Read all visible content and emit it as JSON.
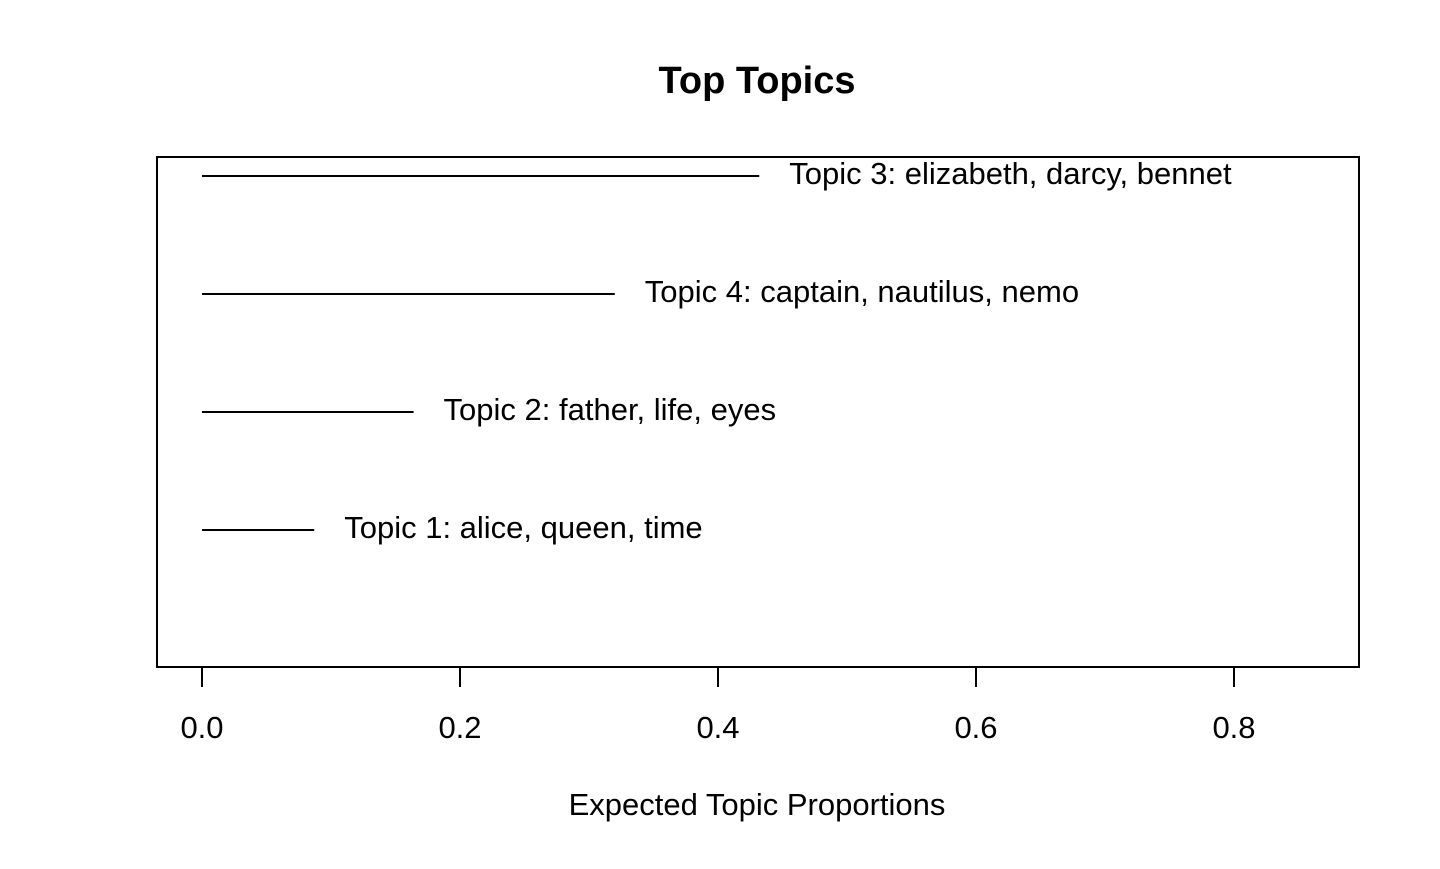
{
  "chart_data": {
    "type": "bar",
    "title": "Top Topics",
    "xlabel": "Expected Topic Proportions",
    "ylabel": "",
    "xlim": [
      0,
      0.9
    ],
    "xticks": [
      0.0,
      0.2,
      0.4,
      0.6,
      0.8
    ],
    "xtick_labels": [
      "0.0",
      "0.2",
      "0.4",
      "0.6",
      "0.8"
    ],
    "grid": false,
    "topics": [
      {
        "label": "Topic 3: elizabeth, darcy, bennet",
        "value": 0.432
      },
      {
        "label": "Topic 4: captain, nautilus, nemo",
        "value": 0.32
      },
      {
        "label": "Topic 2: father, life, eyes",
        "value": 0.164
      },
      {
        "label": "Topic 1: alice, queen, time",
        "value": 0.087
      }
    ],
    "colors": {
      "line": "#000000",
      "background": "#ffffff"
    }
  }
}
